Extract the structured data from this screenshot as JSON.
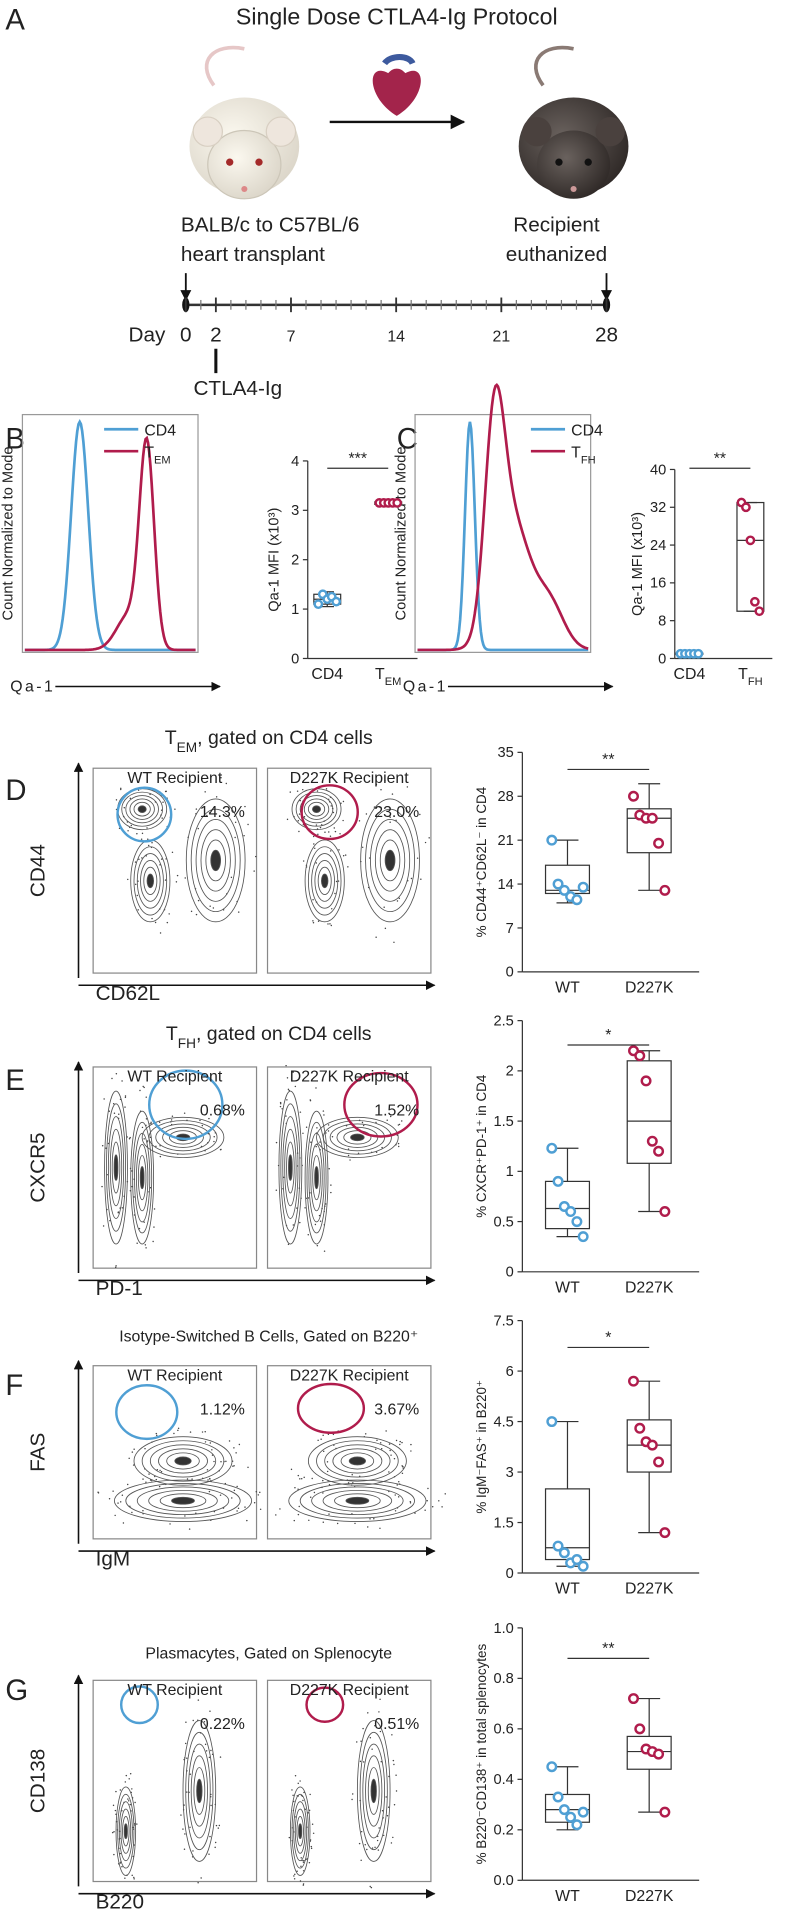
{
  "panel_letters": [
    "A",
    "B",
    "C",
    "D",
    "E",
    "F",
    "G"
  ],
  "protocol": {
    "title": "Single Dose CTLA4-Ig Protocol",
    "donor_label": [
      "BALB/c to C57BL/6",
      "heart transplant"
    ],
    "end_label": [
      "Recipient",
      "euthanized"
    ],
    "timeline": {
      "label": "Day",
      "xlim": [
        0,
        28
      ],
      "ticks": [
        0,
        2,
        7,
        14,
        21,
        28
      ],
      "treatment": {
        "day": 2,
        "label": "CTLA4-Ig"
      }
    }
  },
  "histograms": [
    {
      "y_label": "Count Normalized to Mode",
      "x_label": "Qa-1",
      "legend": [
        {
          "name": "CD4",
          "color": "#4f9fd4"
        },
        {
          "name": [
            "T",
            {
              "sub": "EM"
            }
          ],
          "color": "#b01c4c"
        }
      ]
    },
    {
      "y_label": "Count Normalized to Mode",
      "x_label": "Qa-1",
      "legend": [
        {
          "name": "CD4",
          "color": "#4f9fd4"
        },
        {
          "name": [
            "T",
            {
              "sub": "FH"
            }
          ],
          "color": "#b01c4c"
        }
      ]
    }
  ],
  "flow": [
    {
      "title": [
        "T",
        {
          "sub": "EM"
        },
        ", gated on CD4 cells"
      ],
      "x_label": "CD62L",
      "y_label": "CD44",
      "plots": [
        {
          "name": "WT Recipient",
          "gate": "14.3%",
          "color": "#4f9fd4"
        },
        {
          "name": "D227K Recipient",
          "gate": "23.0%",
          "color": "#b01c4c"
        }
      ]
    },
    {
      "title": [
        "T",
        {
          "sub": "FH"
        },
        ", gated on CD4 cells"
      ],
      "x_label": "PD-1",
      "y_label": "CXCR5",
      "plots": [
        {
          "name": "WT Recipient",
          "gate": "0.68%",
          "color": "#4f9fd4"
        },
        {
          "name": "D227K Recipient",
          "gate": "1.52%",
          "color": "#b01c4c"
        }
      ]
    },
    {
      "title": "Isotype-Switched B Cells, Gated on B220⁺",
      "x_label": "IgM",
      "y_label": "FAS",
      "plots": [
        {
          "name": "WT Recipient",
          "gate": "1.12%",
          "color": "#4f9fd4"
        },
        {
          "name": "D227K Recipient",
          "gate": "3.67%",
          "color": "#b01c4c"
        }
      ]
    },
    {
      "title": "Plasmacytes, Gated on Splenocyte",
      "x_label": "B220",
      "y_label": "CD138",
      "plots": [
        {
          "name": "WT Recipient",
          "gate": "0.22%",
          "color": "#4f9fd4"
        },
        {
          "name": "D227K Recipient",
          "gate": "0.51%",
          "color": "#b01c4c"
        }
      ]
    }
  ],
  "chart_data": [
    {
      "type": "box",
      "ylabel": "Qa-1 MFI (x10³)",
      "categories": [
        "CD4",
        [
          "T",
          {
            "sub": "EM"
          }
        ]
      ],
      "ylim": [
        0,
        4
      ],
      "yticks": [
        0,
        1,
        2,
        3,
        4
      ],
      "significance": "***",
      "groups": [
        {
          "color": "#4f9fd4",
          "points": [
            1.1,
            1.3,
            1.2,
            1.25,
            1.15
          ],
          "box": [
            1.05,
            1.1,
            1.2,
            1.3,
            1.35
          ]
        },
        {
          "color": "#b01c4c",
          "points": [
            3.15,
            3.15,
            3.15,
            3.15,
            3.15
          ],
          "box": [
            3.1,
            3.12,
            3.15,
            3.17,
            3.2
          ]
        }
      ]
    },
    {
      "type": "box",
      "ylabel": "Qa-1 MFI (x10³)",
      "categories": [
        "CD4",
        [
          "T",
          {
            "sub": "FH"
          }
        ]
      ],
      "ylim": [
        0,
        40
      ],
      "yticks": [
        0,
        8,
        16,
        24,
        32,
        40
      ],
      "significance": "**",
      "groups": [
        {
          "color": "#4f9fd4",
          "points": [
            1,
            1,
            1,
            1,
            1
          ],
          "box": [
            0.8,
            0.9,
            1,
            1.1,
            1.2
          ]
        },
        {
          "color": "#b01c4c",
          "points": [
            33,
            32,
            25,
            12,
            10
          ],
          "box": [
            10,
            10,
            25,
            33,
            33
          ]
        }
      ]
    },
    {
      "type": "box",
      "ylabel": "% CD44⁺CD62L⁻ in CD4",
      "categories": [
        "WT",
        "D227K"
      ],
      "ylim": [
        0,
        35
      ],
      "yticks": [
        0,
        7,
        14,
        21,
        28,
        35
      ],
      "significance": "**",
      "groups": [
        {
          "color": "#4f9fd4",
          "points": [
            21,
            14,
            13,
            12,
            11.5,
            13.5
          ],
          "box": [
            11,
            12.5,
            13,
            17,
            21
          ]
        },
        {
          "color": "#b01c4c",
          "points": [
            28,
            25,
            24.5,
            24.5,
            20.5,
            13
          ],
          "box": [
            13,
            19,
            24.5,
            26,
            30
          ]
        }
      ]
    },
    {
      "type": "box",
      "ylabel": "% CXCR⁺PD-1⁺ in CD4",
      "categories": [
        "WT",
        "D227K"
      ],
      "ylim": [
        0,
        2.5
      ],
      "yticks": [
        0,
        0.5,
        1,
        1.5,
        2,
        2.5
      ],
      "significance": "*",
      "groups": [
        {
          "color": "#4f9fd4",
          "points": [
            1.23,
            0.9,
            0.65,
            0.6,
            0.5,
            0.35
          ],
          "box": [
            0.35,
            0.43,
            0.63,
            0.9,
            1.23
          ]
        },
        {
          "color": "#b01c4c",
          "points": [
            2.2,
            2.15,
            1.9,
            1.3,
            1.2,
            0.6
          ],
          "box": [
            0.6,
            1.08,
            1.5,
            2.1,
            2.2
          ]
        }
      ]
    },
    {
      "type": "box",
      "ylabel": "% IgM⁻FAS⁺ in B220⁺",
      "categories": [
        "WT",
        "D227K"
      ],
      "ylim": [
        0,
        7.5
      ],
      "yticks": [
        0,
        1.5,
        3,
        4.5,
        6,
        7.5
      ],
      "significance": "*",
      "groups": [
        {
          "color": "#4f9fd4",
          "points": [
            4.5,
            0.8,
            0.6,
            0.3,
            0.4,
            0.2
          ],
          "box": [
            0.2,
            0.4,
            0.75,
            2.5,
            4.5
          ]
        },
        {
          "color": "#b01c4c",
          "points": [
            5.7,
            4.3,
            3.9,
            3.8,
            3.3,
            1.2
          ],
          "box": [
            1.2,
            3,
            3.8,
            4.55,
            5.7
          ]
        }
      ]
    },
    {
      "type": "box",
      "ylabel": "% B220⁻CD138⁺ in total splenocytes",
      "categories": [
        "WT",
        "D227K"
      ],
      "ylim": [
        0,
        1
      ],
      "yticks": [
        {
          "value": 0,
          "label": "0.0"
        },
        0.2,
        0.4,
        0.6,
        0.8,
        {
          "value": 1,
          "label": "1.0"
        }
      ],
      "significance": "**",
      "groups": [
        {
          "color": "#4f9fd4",
          "points": [
            0.45,
            0.33,
            0.28,
            0.25,
            0.22,
            0.27
          ],
          "box": [
            0.2,
            0.23,
            0.28,
            0.34,
            0.45
          ]
        },
        {
          "color": "#b01c4c",
          "points": [
            0.72,
            0.6,
            0.52,
            0.51,
            0.5,
            0.27
          ],
          "box": [
            0.27,
            0.44,
            0.51,
            0.57,
            0.72
          ]
        }
      ]
    }
  ]
}
